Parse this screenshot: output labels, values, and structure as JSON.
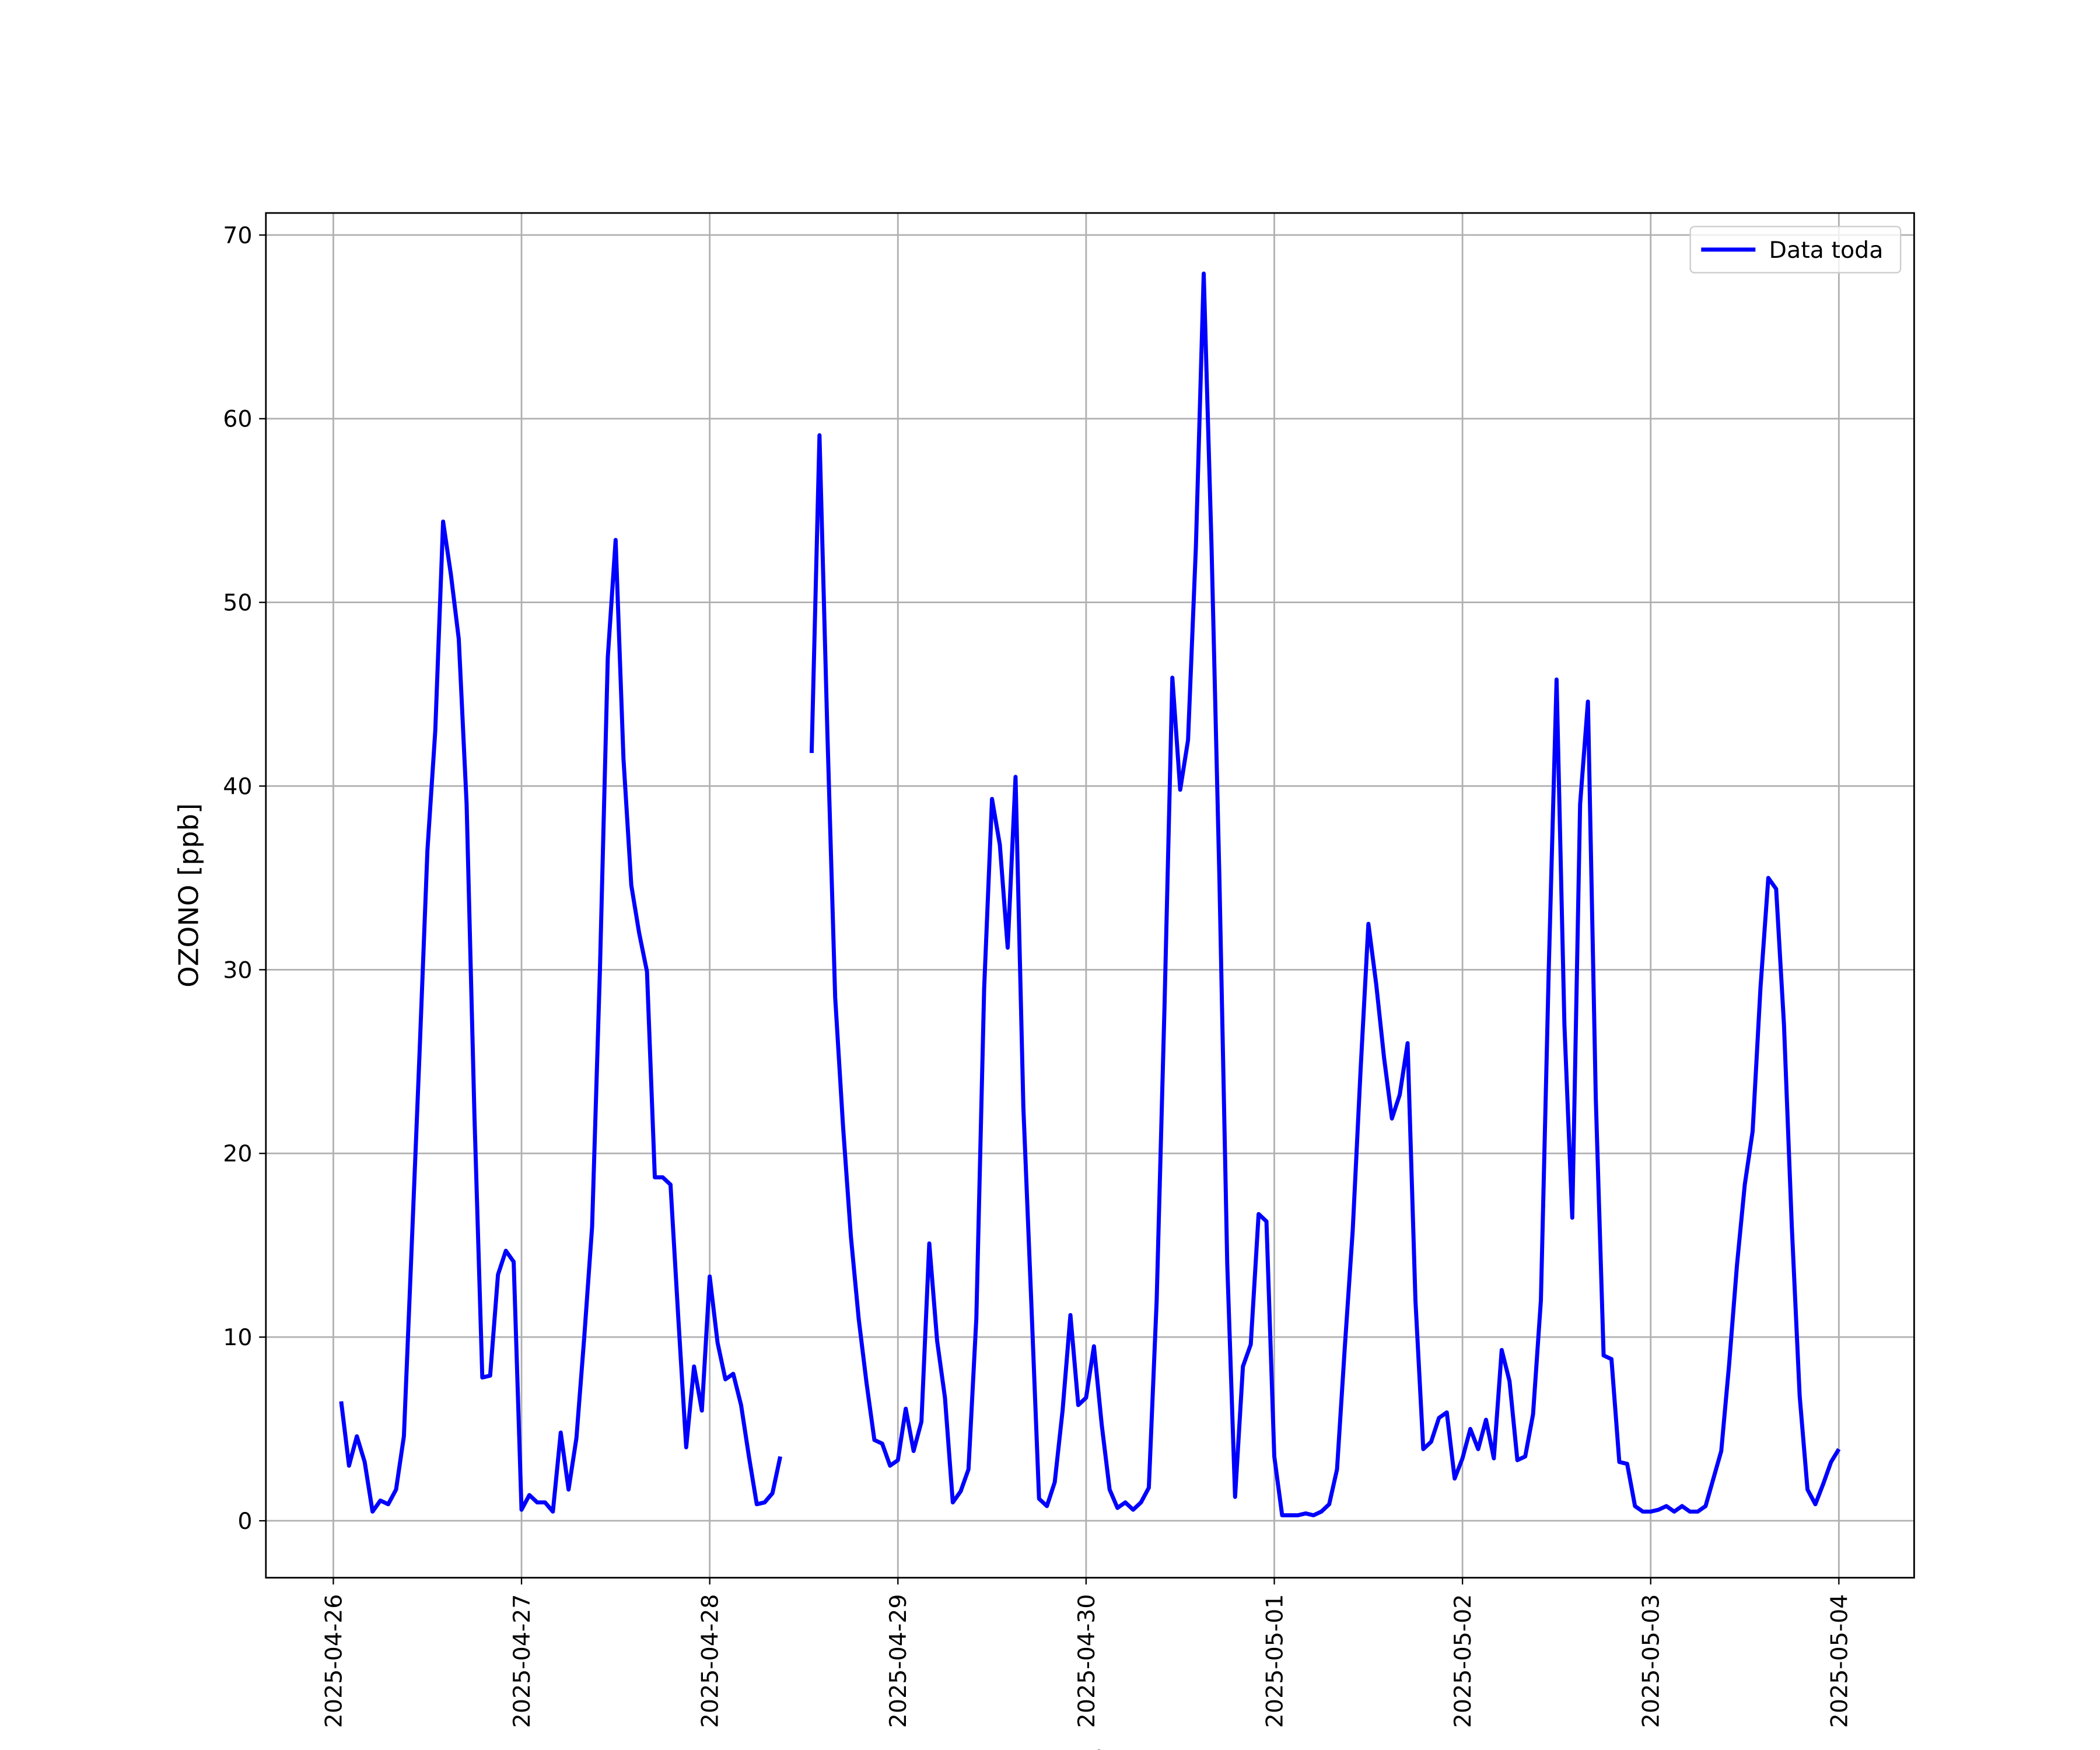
{
  "chart_data": {
    "type": "line",
    "x_label": "Fecha",
    "y_label": "OZONO [ppb]",
    "legend": "upper right",
    "grid": true,
    "xlim": [
      "2025-04-25 15:24",
      "2025-05-04 09:36"
    ],
    "xticks": [
      "2025-04-26",
      "2025-04-27",
      "2025-04-28",
      "2025-04-29",
      "2025-04-30",
      "2025-05-01",
      "2025-05-02",
      "2025-05-03",
      "2025-05-04"
    ],
    "ylim": [
      -3.1,
      71.2
    ],
    "yticks": [
      0,
      10,
      20,
      30,
      40,
      50,
      60,
      70
    ],
    "x": [
      "2025-04-26 01:00",
      "2025-04-26 02:00",
      "2025-04-26 03:00",
      "2025-04-26 04:00",
      "2025-04-26 05:00",
      "2025-04-26 06:00",
      "2025-04-26 07:00",
      "2025-04-26 08:00",
      "2025-04-26 09:00",
      "2025-04-26 10:00",
      "2025-04-26 11:00",
      "2025-04-26 12:00",
      "2025-04-26 13:00",
      "2025-04-26 14:00",
      "2025-04-26 15:00",
      "2025-04-26 16:00",
      "2025-04-26 17:00",
      "2025-04-26 18:00",
      "2025-04-26 19:00",
      "2025-04-26 20:00",
      "2025-04-26 21:00",
      "2025-04-26 22:00",
      "2025-04-26 23:00",
      "2025-04-27 00:00",
      "2025-04-27 01:00",
      "2025-04-27 02:00",
      "2025-04-27 03:00",
      "2025-04-27 04:00",
      "2025-04-27 05:00",
      "2025-04-27 06:00",
      "2025-04-27 07:00",
      "2025-04-27 08:00",
      "2025-04-27 09:00",
      "2025-04-27 10:00",
      "2025-04-27 11:00",
      "2025-04-27 12:00",
      "2025-04-27 13:00",
      "2025-04-27 14:00",
      "2025-04-27 15:00",
      "2025-04-27 16:00",
      "2025-04-27 17:00",
      "2025-04-27 18:00",
      "2025-04-27 19:00",
      "2025-04-27 20:00",
      "2025-04-27 21:00",
      "2025-04-27 22:00",
      "2025-04-27 23:00",
      "2025-04-28 00:00",
      "2025-04-28 01:00",
      "2025-04-28 02:00",
      "2025-04-28 03:00",
      "2025-04-28 04:00",
      "2025-04-28 05:00",
      "2025-04-28 06:00",
      "2025-04-28 07:00",
      "2025-04-28 08:00",
      "2025-04-28 09:00",
      "2025-04-28 10:00",
      "2025-04-28 11:00",
      "2025-04-28 12:00",
      "2025-04-28 13:00",
      "2025-04-28 14:00",
      "2025-04-28 15:00",
      "2025-04-28 16:00",
      "2025-04-28 17:00",
      "2025-04-28 18:00",
      "2025-04-28 19:00",
      "2025-04-28 20:00",
      "2025-04-28 21:00",
      "2025-04-28 22:00",
      "2025-04-28 23:00",
      "2025-04-29 00:00",
      "2025-04-29 01:00",
      "2025-04-29 02:00",
      "2025-04-29 03:00",
      "2025-04-29 04:00",
      "2025-04-29 05:00",
      "2025-04-29 06:00",
      "2025-04-29 07:00",
      "2025-04-29 08:00",
      "2025-04-29 09:00",
      "2025-04-29 10:00",
      "2025-04-29 11:00",
      "2025-04-29 12:00",
      "2025-04-29 13:00",
      "2025-04-29 14:00",
      "2025-04-29 15:00",
      "2025-04-29 16:00",
      "2025-04-29 17:00",
      "2025-04-29 18:00",
      "2025-04-29 19:00",
      "2025-04-29 20:00",
      "2025-04-29 21:00",
      "2025-04-29 22:00",
      "2025-04-29 23:00",
      "2025-04-30 00:00",
      "2025-04-30 01:00",
      "2025-04-30 02:00",
      "2025-04-30 03:00",
      "2025-04-30 04:00",
      "2025-04-30 05:00",
      "2025-04-30 06:00",
      "2025-04-30 07:00",
      "2025-04-30 08:00",
      "2025-04-30 09:00",
      "2025-04-30 10:00",
      "2025-04-30 11:00",
      "2025-04-30 12:00",
      "2025-04-30 13:00",
      "2025-04-30 14:00",
      "2025-04-30 15:00",
      "2025-04-30 16:00",
      "2025-04-30 17:00",
      "2025-04-30 18:00",
      "2025-04-30 19:00",
      "2025-04-30 20:00",
      "2025-04-30 21:00",
      "2025-04-30 22:00",
      "2025-04-30 23:00",
      "2025-05-01 00:00",
      "2025-05-01 01:00",
      "2025-05-01 02:00",
      "2025-05-01 03:00",
      "2025-05-01 04:00",
      "2025-05-01 05:00",
      "2025-05-01 06:00",
      "2025-05-01 07:00",
      "2025-05-01 08:00",
      "2025-05-01 09:00",
      "2025-05-01 10:00",
      "2025-05-01 11:00",
      "2025-05-01 12:00",
      "2025-05-01 13:00",
      "2025-05-01 14:00",
      "2025-05-01 15:00",
      "2025-05-01 16:00",
      "2025-05-01 17:00",
      "2025-05-01 18:00",
      "2025-05-01 19:00",
      "2025-05-01 20:00",
      "2025-05-01 21:00",
      "2025-05-01 22:00",
      "2025-05-01 23:00",
      "2025-05-02 00:00",
      "2025-05-02 01:00",
      "2025-05-02 02:00",
      "2025-05-02 03:00",
      "2025-05-02 04:00",
      "2025-05-02 05:00",
      "2025-05-02 06:00",
      "2025-05-02 07:00",
      "2025-05-02 08:00",
      "2025-05-02 09:00",
      "2025-05-02 10:00",
      "2025-05-02 11:00",
      "2025-05-02 12:00",
      "2025-05-02 13:00",
      "2025-05-02 14:00",
      "2025-05-02 15:00",
      "2025-05-02 16:00",
      "2025-05-02 17:00",
      "2025-05-02 18:00",
      "2025-05-02 19:00",
      "2025-05-02 20:00",
      "2025-05-02 21:00",
      "2025-05-02 22:00",
      "2025-05-02 23:00",
      "2025-05-03 00:00",
      "2025-05-03 01:00",
      "2025-05-03 02:00",
      "2025-05-03 03:00",
      "2025-05-03 04:00",
      "2025-05-03 05:00",
      "2025-05-03 06:00",
      "2025-05-03 07:00",
      "2025-05-03 08:00",
      "2025-05-03 09:00",
      "2025-05-03 10:00",
      "2025-05-03 11:00",
      "2025-05-03 12:00",
      "2025-05-03 13:00",
      "2025-05-03 14:00",
      "2025-05-03 15:00",
      "2025-05-03 16:00",
      "2025-05-03 17:00",
      "2025-05-03 18:00",
      "2025-05-03 19:00",
      "2025-05-03 20:00",
      "2025-05-03 21:00",
      "2025-05-03 22:00",
      "2025-05-03 23:00",
      "2025-05-04 00:00"
    ],
    "series": [
      {
        "name": "Data toda",
        "color": "#0000ff",
        "values": [
          6.5,
          3.0,
          4.6,
          3.2,
          0.5,
          1.1,
          0.9,
          1.7,
          4.6,
          15,
          25.5,
          36.5,
          43,
          54.4,
          51.5,
          48,
          39,
          22,
          7.8,
          7.9,
          13.4,
          14.7,
          14.1,
          0.6,
          1.4,
          1.0,
          1.0,
          0.5,
          4.8,
          1.7,
          4.5,
          10,
          16,
          30,
          47,
          53.4,
          41.5,
          34.6,
          32,
          29.9,
          18.7,
          18.7,
          18.3,
          11,
          4.0,
          8.4,
          6.0,
          13.3,
          9.7,
          7.7,
          8.0,
          6.3,
          3.5,
          0.9,
          1.0,
          1.5,
          3.5,
          null,
          null,
          null,
          41.8,
          59.1,
          43,
          28.5,
          21.5,
          15.5,
          11,
          7.5,
          4.4,
          4.2,
          3.0,
          3.3,
          6.1,
          3.8,
          5.4,
          15.1,
          9.8,
          6.7,
          1.0,
          1.6,
          2.8,
          11,
          29,
          39.3,
          36.8,
          31.2,
          40.5,
          22.5,
          12,
          1.2,
          0.8,
          2.1,
          6.0,
          11.2,
          6.3,
          6.7,
          9.5,
          5.2,
          1.7,
          0.7,
          1.0,
          0.6,
          1.0,
          1.8,
          12,
          28,
          45.9,
          39.8,
          42.5,
          53,
          67.9,
          53,
          35,
          14,
          1.3,
          8.4,
          9.6,
          16.7,
          16.3,
          3.5,
          0.3,
          0.3,
          0.3,
          0.4,
          0.3,
          0.5,
          0.9,
          2.8,
          9.5,
          15.8,
          24.5,
          32.5,
          29.2,
          25.2,
          21.9,
          23.2,
          26.0,
          12,
          3.9,
          4.3,
          5.6,
          5.9,
          2.3,
          3.4,
          5.0,
          3.9,
          5.5,
          3.4,
          9.3,
          7.6,
          3.3,
          3.5,
          5.8,
          12,
          30,
          45.8,
          27,
          16.5,
          39,
          44.6,
          23,
          9.0,
          8.8,
          3.2,
          3.1,
          0.8,
          0.5,
          0.5,
          0.6,
          0.8,
          0.5,
          0.8,
          0.5,
          0.5,
          0.8,
          2.3,
          3.8,
          8.5,
          13.9,
          18.3,
          21.2,
          29,
          35.0,
          34.4,
          27,
          16,
          6.8,
          1.7,
          0.9,
          2.0,
          3.2,
          3.9
        ]
      }
    ]
  }
}
